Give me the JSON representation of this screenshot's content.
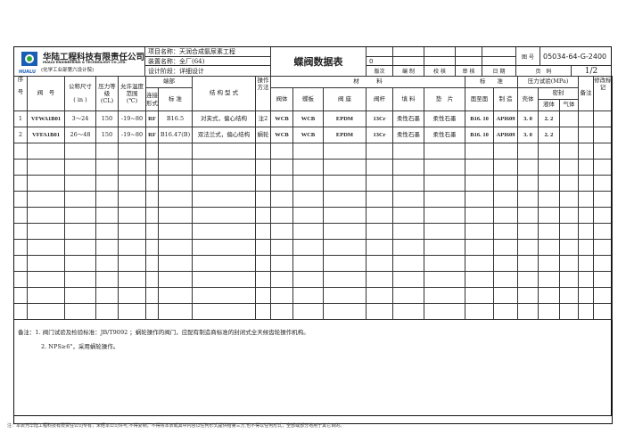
{
  "company": {
    "name_cn": "华陆工程科技有限责任公司",
    "name_en": "HUALU ENGINEERING & TECHNOLOGY CO.,LTD.",
    "sub": "(化学工业部第六设计院)",
    "logo_text": "HUALU"
  },
  "project": {
    "line1": "项目名称：天润合成氨尿素工程",
    "line2": "装置名称：全厂(64)",
    "line3": "设计阶段：详细设计"
  },
  "title": "蝶阀数据表",
  "revision": {
    "value": "0",
    "labels": [
      "版次",
      "编 制",
      "校 核",
      "审 核",
      "日 期"
    ]
  },
  "drawing": {
    "label": "图 号",
    "number": "05034-64-G-2400",
    "page_label": "页　码",
    "page": "1/2"
  },
  "headers": {
    "seq_top": "序",
    "seq_bottom": "号",
    "valve_no": "阀　号",
    "size": "公称尺寸",
    "size_unit": "( in )",
    "pressure": "压力等级",
    "pressure_unit": "(CL)",
    "temp": "允许温度范围",
    "temp_unit": "(℃)",
    "ends": "端部",
    "conn": "连接形式",
    "std": "标 准",
    "structure": "结 构 型 式",
    "operation": "操作方法",
    "material": "材　　　料",
    "body": "阀体",
    "disc": "蝶板",
    "seat": "阀 座",
    "stem": "阀杆",
    "packing": "填 料",
    "gasket": "垫　片",
    "standard": "标　　准",
    "f2f": "面至面",
    "mfg": "制 造",
    "test": "压力试验(MPa)",
    "shell": "壳体",
    "seal": "密封",
    "liquid": "液体",
    "gas": "气体",
    "remark": "备注",
    "mod": "修改标记"
  },
  "rows": [
    {
      "seq": "1",
      "valve_no": "VFWA1B01",
      "size": "3～24",
      "pressure": "150",
      "temp": "-19~80",
      "conn": "RF",
      "std": "B16.5",
      "structure": "对夹式，偏心结构",
      "operation": "注2",
      "body": "WCB",
      "disc": "WCB",
      "seat": "EPDM",
      "stem": "13Cr",
      "packing": "柔性石墨",
      "gasket": "柔性石墨",
      "f2f": "B16. 10",
      "mfg": "API609",
      "shell": "3. 0",
      "liquid": "2. 2",
      "gas": "",
      "remark": "",
      "mod": ""
    },
    {
      "seq": "2",
      "valve_no": "VFFA1B01",
      "size": "26～48",
      "pressure": "150",
      "temp": "-19~80",
      "conn": "RF",
      "std": "B16.47(B)",
      "structure": "双法兰式，偏心结构",
      "operation": "蜗轮",
      "body": "WCB",
      "disc": "WCB",
      "seat": "EPDM",
      "stem": "13Cr",
      "packing": "柔性石墨",
      "gasket": "柔性石墨",
      "f2f": "B16. 10",
      "mfg": "API609",
      "shell": "3. 0",
      "liquid": "2. 2",
      "gas": "",
      "remark": "",
      "mod": ""
    }
  ],
  "notes": {
    "line1": "备注：1. 阀门试验及检验标准：JB/T9092 ；蜗轮操作的阀门，应配有制造商标准的封闭式全天候齿轮操作机构。",
    "line2": "2.  NPS≥6\"，采用蜗轮操作。"
  },
  "footer": "注：本表为华陆工程科技有限责任公司专有，未经本公司许可,不得复制，不得将本表或其中内容以任何形式提供给第三方,也不得以任何形式，全部或部分地用于其它目的。"
}
